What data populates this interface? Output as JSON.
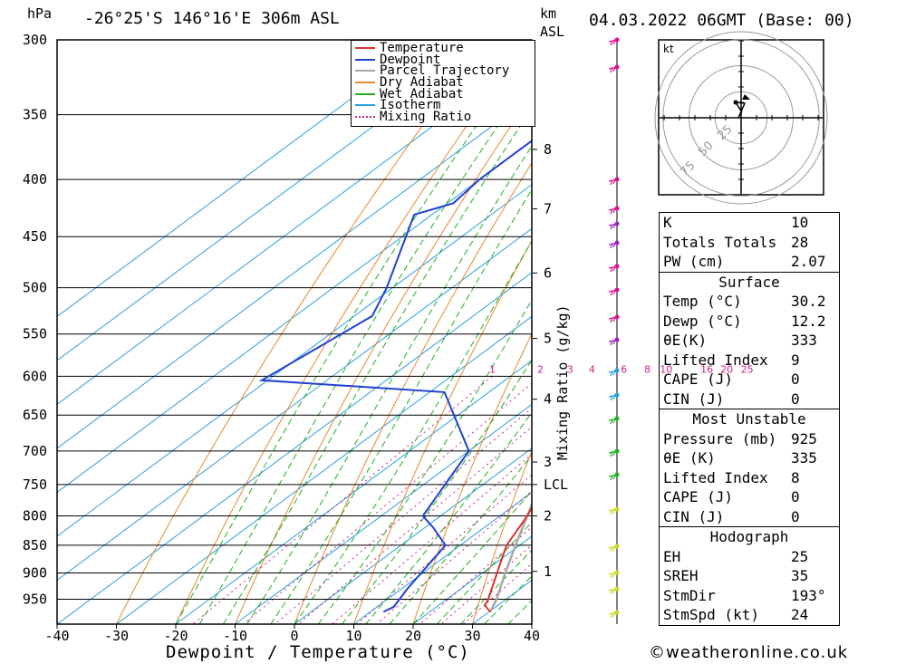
{
  "header": {
    "hpa_label": "hPa",
    "location": "-26°25'S 146°16'E 306m ASL",
    "km_label": "km",
    "asl_label": "ASL",
    "datetime": "04.03.2022 06GMT (Base: 00)"
  },
  "chart_data": {
    "type": "skew-t",
    "xlabel": "Dewpoint / Temperature (°C)",
    "ylabel_right": "Mixing Ratio (g/kg)",
    "x_ticks": [
      -40,
      -30,
      -20,
      -10,
      0,
      10,
      20,
      30,
      40
    ],
    "pressure_levels": [
      300,
      350,
      400,
      450,
      500,
      550,
      600,
      650,
      700,
      750,
      800,
      850,
      900,
      950
    ],
    "km_ticks": [
      {
        "label": "8",
        "p": 376
      },
      {
        "label": "7",
        "p": 425
      },
      {
        "label": "6",
        "p": 485
      },
      {
        "label": "5",
        "p": 555
      },
      {
        "label": "4",
        "p": 629
      },
      {
        "label": "3",
        "p": 716
      },
      {
        "label": "LCL",
        "p": 750
      },
      {
        "label": "2",
        "p": 800
      },
      {
        "label": "1",
        "p": 897
      }
    ],
    "mixing_ratio_labels": [
      "1",
      "2",
      "3",
      "4",
      "6",
      "8",
      "10",
      "16",
      "20",
      "25"
    ],
    "mixing_ratios": [
      1,
      2,
      3,
      4,
      6,
      8,
      10,
      16,
      20,
      25
    ],
    "legend": [
      "Temperature",
      "Dewpoint",
      "Parcel Trajectory",
      "Dry Adiabat",
      "Wet Adiabat",
      "Isotherm",
      "Mixing Ratio"
    ],
    "colors": {
      "temperature": "#e03030",
      "dewpoint": "#2040d0",
      "parcel": "#a8a8a8",
      "dry_adiabat": "#e88830",
      "wet_adiabat": "#20b020",
      "isotherm": "#2aa0e0",
      "mixing_ratio": "#d0208a"
    },
    "temperature_profile": [
      {
        "p": 975,
        "t": 30.2
      },
      {
        "p": 962,
        "t": 27.8
      },
      {
        "p": 950,
        "t": 27.0
      },
      {
        "p": 900,
        "t": 22.5
      },
      {
        "p": 850,
        "t": 17.8
      },
      {
        "p": 800,
        "t": 14.6
      },
      {
        "p": 770,
        "t": 12.2
      },
      {
        "p": 750,
        "t": 9.4
      },
      {
        "p": 700,
        "t": 2.8
      },
      {
        "p": 650,
        "t": -2.8
      },
      {
        "p": 625,
        "t": -5.8
      },
      {
        "p": 605,
        "t": -5.0
      },
      {
        "p": 575,
        "t": -10.0
      },
      {
        "p": 550,
        "t": -13.5
      },
      {
        "p": 500,
        "t": -19.0
      },
      {
        "p": 450,
        "t": -29.0
      },
      {
        "p": 425,
        "t": -33.5
      },
      {
        "p": 400,
        "t": -39.5
      },
      {
        "p": 370,
        "t": -45.0
      }
    ],
    "temperature_upper": [
      {
        "p": 355,
        "t": -46.0
      },
      {
        "p": 330,
        "t": -51.0
      },
      {
        "p": 300,
        "t": -58.0
      }
    ],
    "dewpoint_profile": [
      {
        "p": 975,
        "t": 12.2
      },
      {
        "p": 965,
        "t": 12.8
      },
      {
        "p": 930,
        "t": 11.0
      },
      {
        "p": 850,
        "t": 7.5
      },
      {
        "p": 820,
        "t": 1.5
      },
      {
        "p": 800,
        "t": -3.0
      },
      {
        "p": 700,
        "t": -10.0
      },
      {
        "p": 620,
        "t": -27.5
      },
      {
        "p": 605,
        "t": -61.0
      },
      {
        "p": 530,
        "t": -57.0
      },
      {
        "p": 500,
        "t": -61.0
      },
      {
        "p": 430,
        "t": -73.0
      },
      {
        "p": 420,
        "t": -69.0
      },
      {
        "p": 400,
        "t": -70.0
      },
      {
        "p": 370,
        "t": -70.0
      },
      {
        "p": 345,
        "t": -69.5
      },
      {
        "p": 325,
        "t": -62.0
      },
      {
        "p": 300,
        "t": -65.0
      }
    ],
    "parcel_profile": [
      {
        "p": 975,
        "t": 30.2
      },
      {
        "p": 950,
        "t": 28.4
      },
      {
        "p": 900,
        "t": 23.9
      },
      {
        "p": 850,
        "t": 19.3
      },
      {
        "p": 800,
        "t": 14.6
      },
      {
        "p": 750,
        "t": 9.6
      },
      {
        "p": 700,
        "t": 5.5
      },
      {
        "p": 650,
        "t": 1.5
      },
      {
        "p": 600,
        "t": -4.5
      },
      {
        "p": 550,
        "t": -10.5
      },
      {
        "p": 500,
        "t": -17.5
      },
      {
        "p": 450,
        "t": -25.0
      },
      {
        "p": 400,
        "t": -34.5
      },
      {
        "p": 350,
        "t": -46.0
      },
      {
        "p": 310,
        "t": -55.5
      }
    ]
  },
  "hodograph": {
    "unit": "kt",
    "rings": [
      "25",
      "50",
      "75"
    ]
  },
  "indices": [
    {
      "key": "K",
      "value": "10"
    },
    {
      "key": "Totals Totals",
      "value": "28"
    },
    {
      "key": "PW (cm)",
      "value": "2.07"
    }
  ],
  "surface": {
    "title": "Surface",
    "rows": [
      {
        "key": "Temp (°C)",
        "value": "30.2"
      },
      {
        "key": "Dewp (°C)",
        "value": "12.2"
      },
      {
        "key": "θE(K)",
        "value": "333"
      },
      {
        "key": "Lifted Index",
        "value": "9"
      },
      {
        "key": "CAPE (J)",
        "value": "0"
      },
      {
        "key": "CIN (J)",
        "value": "0"
      }
    ]
  },
  "most_unstable": {
    "title": "Most Unstable",
    "rows": [
      {
        "key": "Pressure (mb)",
        "value": "925"
      },
      {
        "key": "θE (K)",
        "value": "335"
      },
      {
        "key": "Lifted Index",
        "value": "8"
      },
      {
        "key": "CAPE (J)",
        "value": "0"
      },
      {
        "key": "CIN (J)",
        "value": "0"
      }
    ]
  },
  "hodograph_table": {
    "title": "Hodograph",
    "rows": [
      {
        "key": "EH",
        "value": "25"
      },
      {
        "key": "SREH",
        "value": "35"
      },
      {
        "key": "StmDir",
        "value": "193°"
      },
      {
        "key": "StmSpd (kt)",
        "value": "24"
      }
    ]
  },
  "footer": {
    "copyright": "©weatheronline.co.uk"
  }
}
